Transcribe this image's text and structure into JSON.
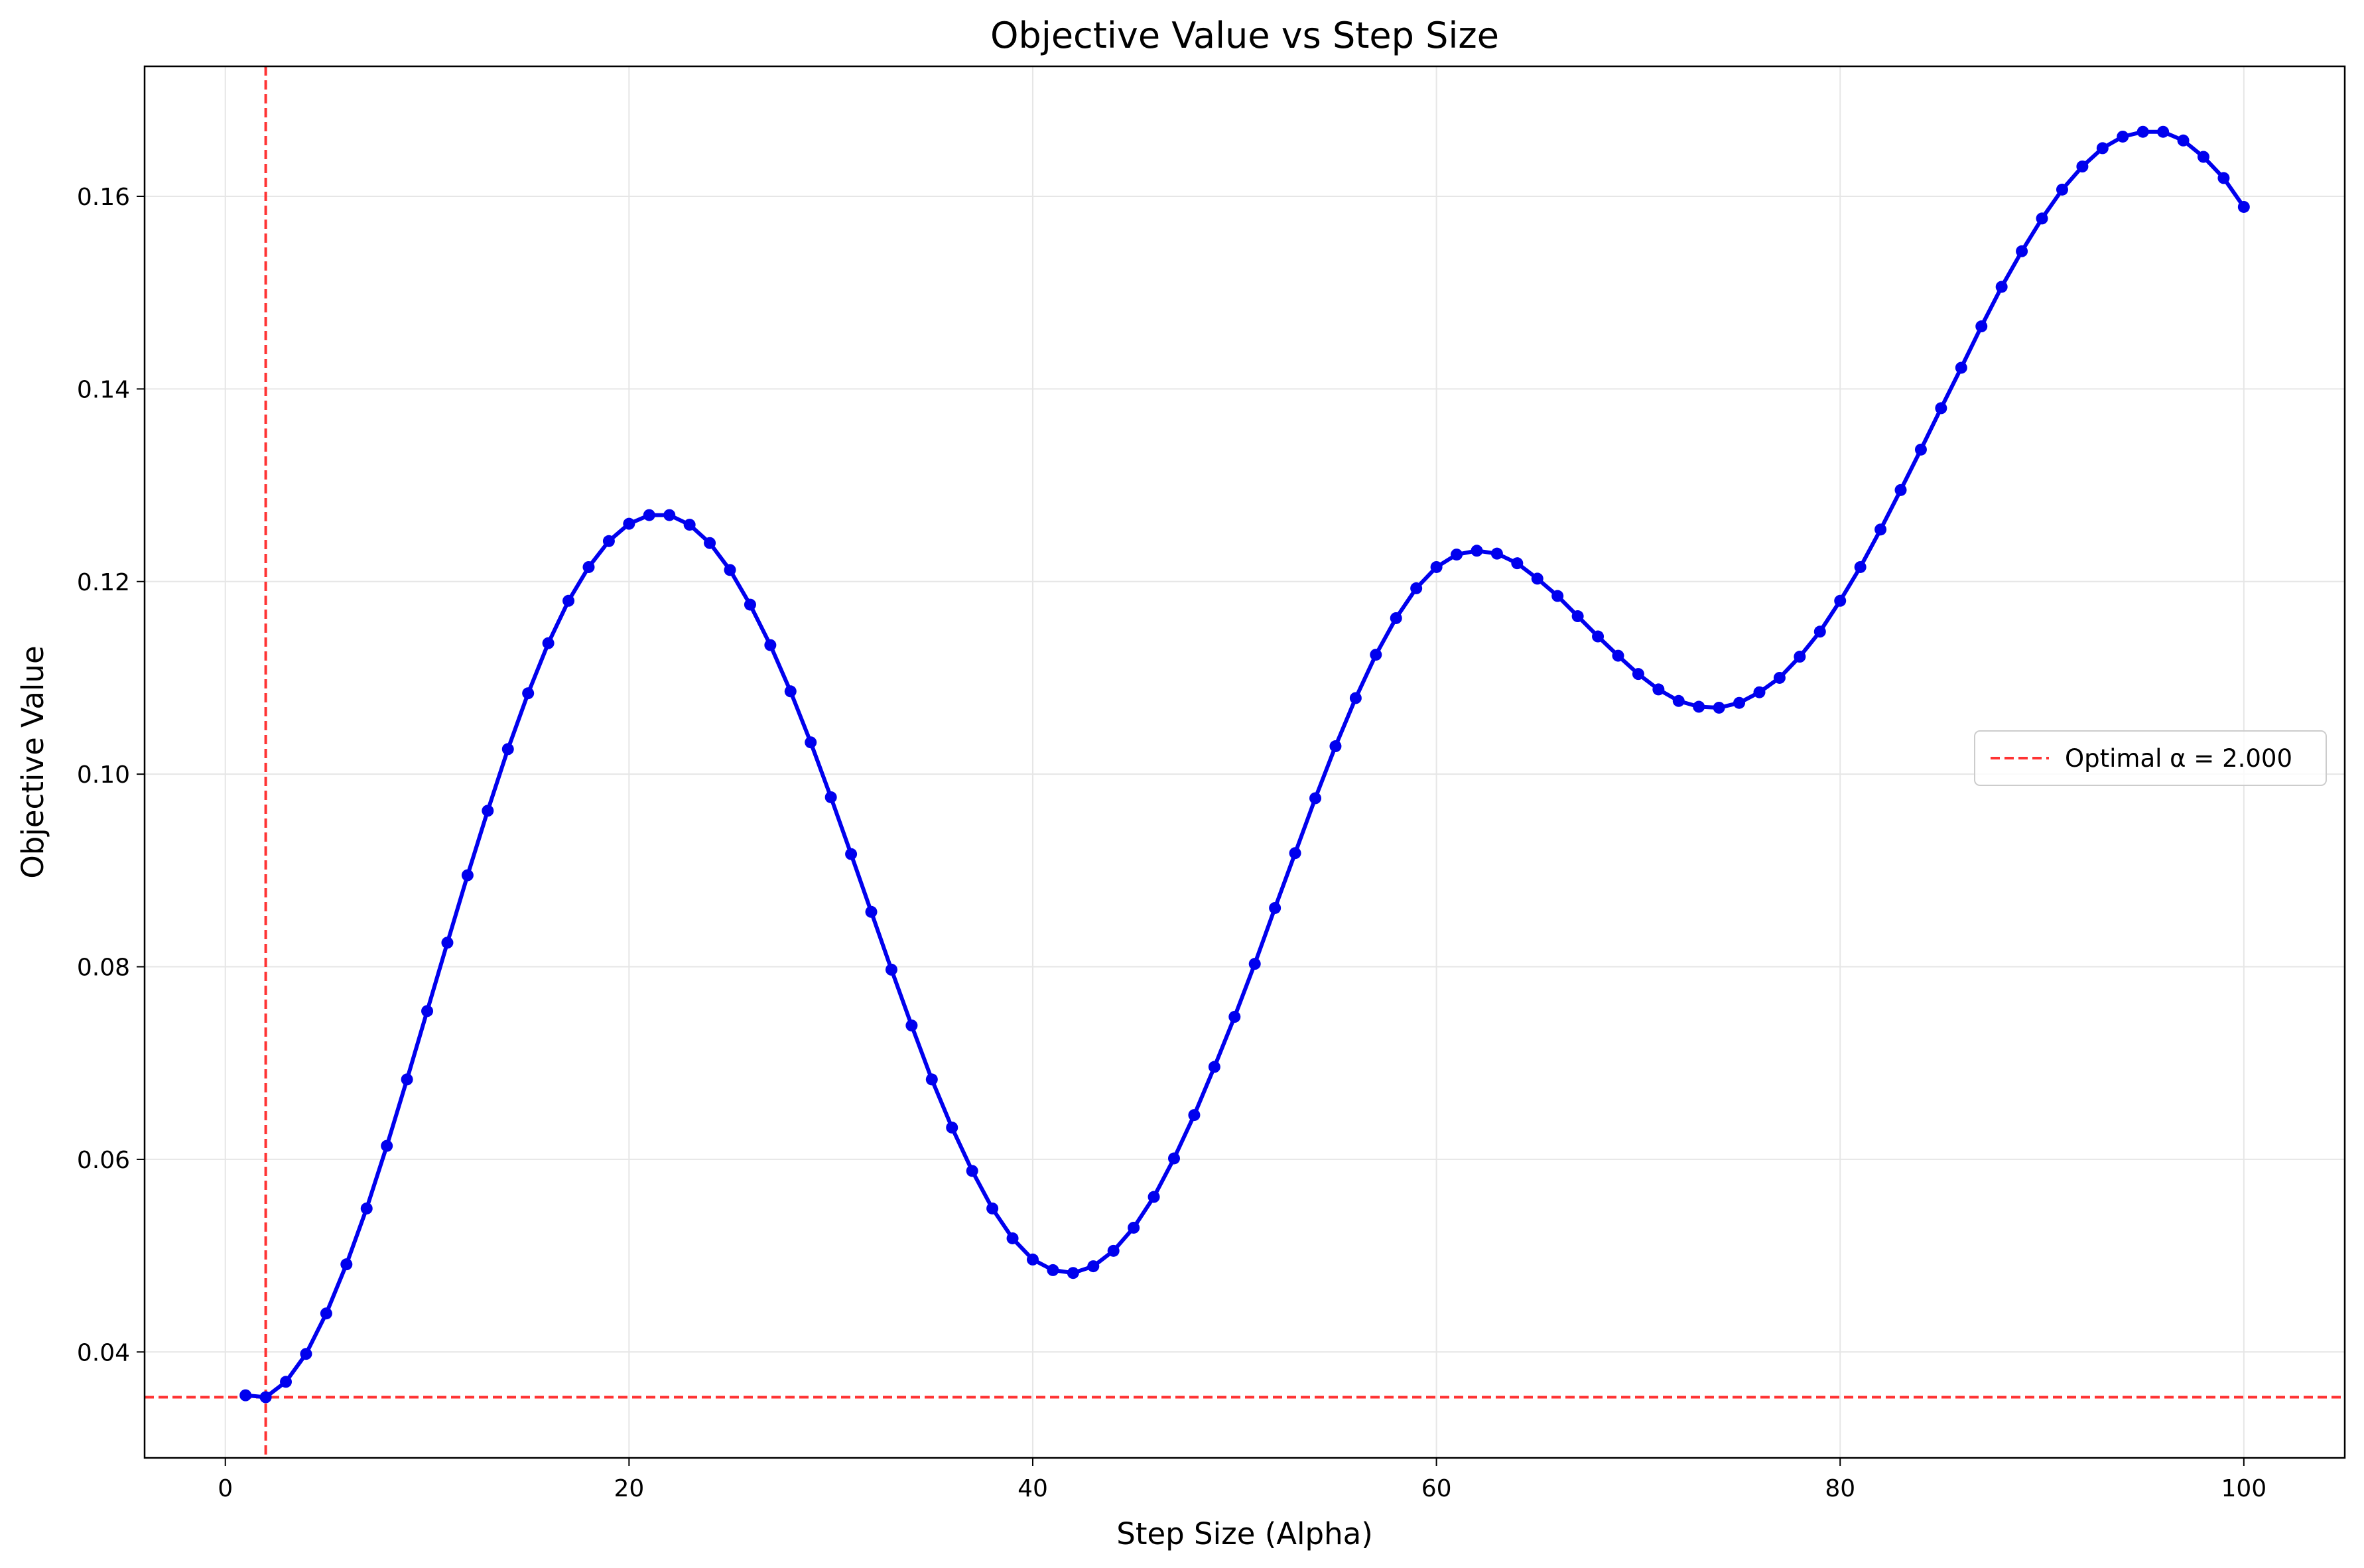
{
  "chart_data": {
    "type": "line",
    "title": "Objective Value vs Step Size",
    "xlabel": "Step Size (Alpha)",
    "ylabel": "Objective Value",
    "xlim": [
      -4,
      105
    ],
    "ylim": [
      0.029,
      0.1735
    ],
    "xticks": [
      0,
      20,
      40,
      60,
      80,
      100
    ],
    "xtick_labels": [
      "0",
      "20",
      "40",
      "60",
      "80",
      "100"
    ],
    "yticks": [
      0.04,
      0.06,
      0.08,
      0.1,
      0.12,
      0.14,
      0.16
    ],
    "ytick_labels": [
      "0.04",
      "0.06",
      "0.08",
      "0.10",
      "0.12",
      "0.14",
      "0.16"
    ],
    "grid": true,
    "legend_position": "center-right",
    "series": [
      {
        "color": "#0000ee",
        "marker": "circle",
        "x": [
          1,
          2,
          3,
          4,
          5,
          6,
          7,
          8,
          9,
          10,
          11,
          12,
          13,
          14,
          15,
          16,
          17,
          18,
          19,
          20,
          21,
          22,
          23,
          24,
          25,
          26,
          27,
          28,
          29,
          30,
          31,
          32,
          33,
          34,
          35,
          36,
          37,
          38,
          39,
          40,
          41,
          42,
          43,
          44,
          45,
          46,
          47,
          48,
          49,
          50,
          51,
          52,
          53,
          54,
          55,
          56,
          57,
          58,
          59,
          60,
          61,
          62,
          63,
          64,
          65,
          66,
          67,
          68,
          69,
          70,
          71,
          72,
          73,
          74,
          75,
          76,
          77,
          78,
          79,
          80,
          81,
          82,
          83,
          84,
          85,
          86,
          87,
          88,
          89,
          90,
          91,
          92,
          93,
          94,
          95,
          96,
          97,
          98,
          99,
          100
        ],
        "values": [
          0.0355,
          0.0353,
          0.0369,
          0.0398,
          0.044,
          0.0491,
          0.0549,
          0.0614,
          0.0683,
          0.0754,
          0.0825,
          0.0895,
          0.0962,
          0.1026,
          0.1084,
          0.1136,
          0.118,
          0.1215,
          0.1242,
          0.126,
          0.1269,
          0.1269,
          0.1259,
          0.124,
          0.1212,
          0.1176,
          0.1134,
          0.1086,
          0.1033,
          0.0976,
          0.0917,
          0.0857,
          0.0797,
          0.0739,
          0.0683,
          0.0633,
          0.0588,
          0.0549,
          0.0518,
          0.0496,
          0.0485,
          0.0482,
          0.0489,
          0.0505,
          0.0529,
          0.0561,
          0.0601,
          0.0646,
          0.0696,
          0.0748,
          0.0803,
          0.0861,
          0.0918,
          0.0975,
          0.1029,
          0.1079,
          0.1124,
          0.1162,
          0.1193,
          0.1215,
          0.1228,
          0.1232,
          0.1229,
          0.1219,
          0.1203,
          0.1185,
          0.1164,
          0.1143,
          0.1123,
          0.1104,
          0.1088,
          0.1076,
          0.107,
          0.1069,
          0.1074,
          0.1085,
          0.11,
          0.1122,
          0.1148,
          0.118,
          0.1215,
          0.1254,
          0.1295,
          0.1337,
          0.138,
          0.1422,
          0.1465,
          0.1506,
          0.1543,
          0.1577,
          0.1607,
          0.1631,
          0.165,
          0.1662,
          0.1667,
          0.1667,
          0.1658,
          0.1641,
          0.1619,
          0.1589
        ]
      }
    ],
    "reference_lines": {
      "color": "#ff3333",
      "style": "dashed",
      "vertical_x": 2,
      "horizontal_y": 0.0353,
      "legend_label": "Optimal α = 2.000"
    }
  }
}
